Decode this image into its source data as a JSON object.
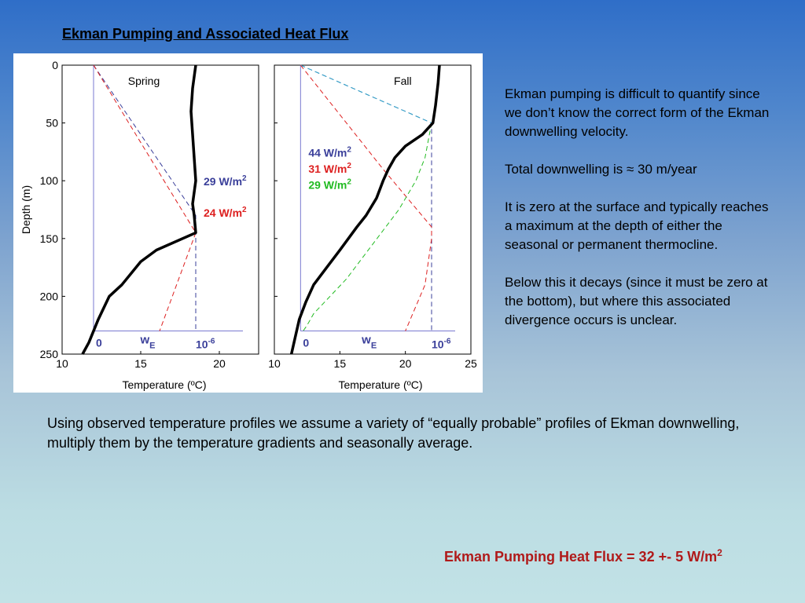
{
  "slide": {
    "title": "Ekman Pumping and Associated Heat Flux",
    "paragraphs": [
      "Ekman pumping is difficult to quantify since we don’t know the correct form of the Ekman downwelling velocity.",
      "Total downwelling is ≈ 30 m/year",
      "It is zero at the surface and typically reaches a maximum at the depth of either the seasonal or permanent thermocline.",
      "Below this it decays (since it must be zero at the bottom), but where this associated divergence occurs is unclear."
    ],
    "bottom_text": "Using observed temperature profiles we assume a variety of “equally probable” profiles of Ekman downwelling, multiply them by the temperature gradients and seasonally average.",
    "summary_main": "Ekman Pumping Heat Flux = 32 +- 5 W/m",
    "summary_sup": "2"
  },
  "colors": {
    "profile": "#000000",
    "blue": "#3a3f9a",
    "red": "#dd2020",
    "green": "#22bb22",
    "cyan": "#33aacc",
    "axis": "#7a7ad0"
  },
  "chart_data": [
    {
      "type": "line",
      "panel_label": "Spring",
      "xlabel": "Temperature (ºC)",
      "ylabel": "Depth (m)",
      "xlim": [
        10,
        22.5
      ],
      "ylim": [
        250,
        0
      ],
      "x_ticks": [
        10,
        15,
        20
      ],
      "y_ticks": [
        0,
        50,
        100,
        150,
        200,
        250
      ],
      "grid": false,
      "we_axis": {
        "depth": 230,
        "zero_label": "0",
        "name_label": "w",
        "name_sub": "E",
        "max_label": "10",
        "max_sup": "-6",
        "x_zero": 12,
        "x_max": 18.5
      },
      "temperature_profile": {
        "x": [
          11.3,
          11.7,
          12.3,
          13.0,
          13.8,
          15.0,
          16.0,
          18.5,
          18.4,
          18.3,
          18.5,
          18.4,
          18.3,
          18.2,
          18.3,
          18.5
        ],
        "y": [
          250,
          240,
          220,
          200,
          190,
          170,
          160,
          145,
          130,
          120,
          100,
          80,
          60,
          40,
          20,
          0
        ]
      },
      "ekman_profiles": [
        {
          "color": "blue",
          "x": [
            12,
            18.5,
            18.5
          ],
          "y": [
            0,
            130,
            230
          ]
        },
        {
          "color": "red",
          "x": [
            12,
            18.5,
            16.2
          ],
          "y": [
            0,
            145,
            230
          ]
        }
      ],
      "flux_labels": [
        {
          "text": "29 W/m",
          "sup": "2",
          "color": "blue",
          "x": 19.0,
          "y": 104
        },
        {
          "text": "24 W/m",
          "sup": "2",
          "color": "red",
          "x": 19.0,
          "y": 131
        }
      ]
    },
    {
      "type": "line",
      "panel_label": "Fall",
      "xlabel": "Temperature (ºC)",
      "ylabel": "",
      "xlim": [
        10,
        25
      ],
      "ylim": [
        250,
        0
      ],
      "x_ticks": [
        10,
        15,
        20,
        25
      ],
      "y_ticks": [
        0,
        50,
        100,
        150,
        200,
        250
      ],
      "grid": false,
      "we_axis": {
        "depth": 230,
        "zero_label": "0",
        "name_label": "w",
        "name_sub": "E",
        "max_label": "10",
        "max_sup": "-6",
        "x_zero": 12,
        "x_max": 22
      },
      "temperature_profile": {
        "x": [
          11.3,
          11.6,
          11.9,
          12.4,
          13.0,
          14.0,
          15.0,
          16.3,
          17.0,
          17.8,
          18.3,
          18.7,
          19.2,
          20.0,
          21.3,
          22.1,
          22.3,
          22.5,
          22.6
        ],
        "y": [
          250,
          235,
          220,
          205,
          190,
          175,
          160,
          140,
          130,
          115,
          100,
          90,
          80,
          70,
          60,
          50,
          35,
          15,
          0
        ]
      },
      "ekman_profiles": [
        {
          "color": "blue",
          "x": [
            12,
            22,
            22
          ],
          "y": [
            0,
            50,
            230
          ]
        },
        {
          "color": "cyan",
          "x": [
            12,
            22
          ],
          "y": [
            0,
            50
          ]
        },
        {
          "color": "red",
          "x": [
            12,
            18.3,
            22.0,
            22.0,
            21.5,
            20.0
          ],
          "y": [
            0,
            90,
            140,
            150,
            190,
            230
          ]
        },
        {
          "color": "green",
          "x": [
            22.0,
            21.5,
            20.8,
            19.5,
            17.5,
            15.5,
            13.0,
            12.5,
            12.2
          ],
          "y": [
            50,
            80,
            100,
            125,
            155,
            185,
            215,
            225,
            230
          ]
        }
      ],
      "flux_labels": [
        {
          "text": "44 W/m",
          "sup": "2",
          "color": "blue",
          "x": 12.6,
          "y": 79
        },
        {
          "text": "31 W/m",
          "sup": "2",
          "color": "red",
          "x": 12.6,
          "y": 93
        },
        {
          "text": "29 W/m",
          "sup": "2",
          "color": "green",
          "x": 12.6,
          "y": 107
        }
      ]
    }
  ]
}
